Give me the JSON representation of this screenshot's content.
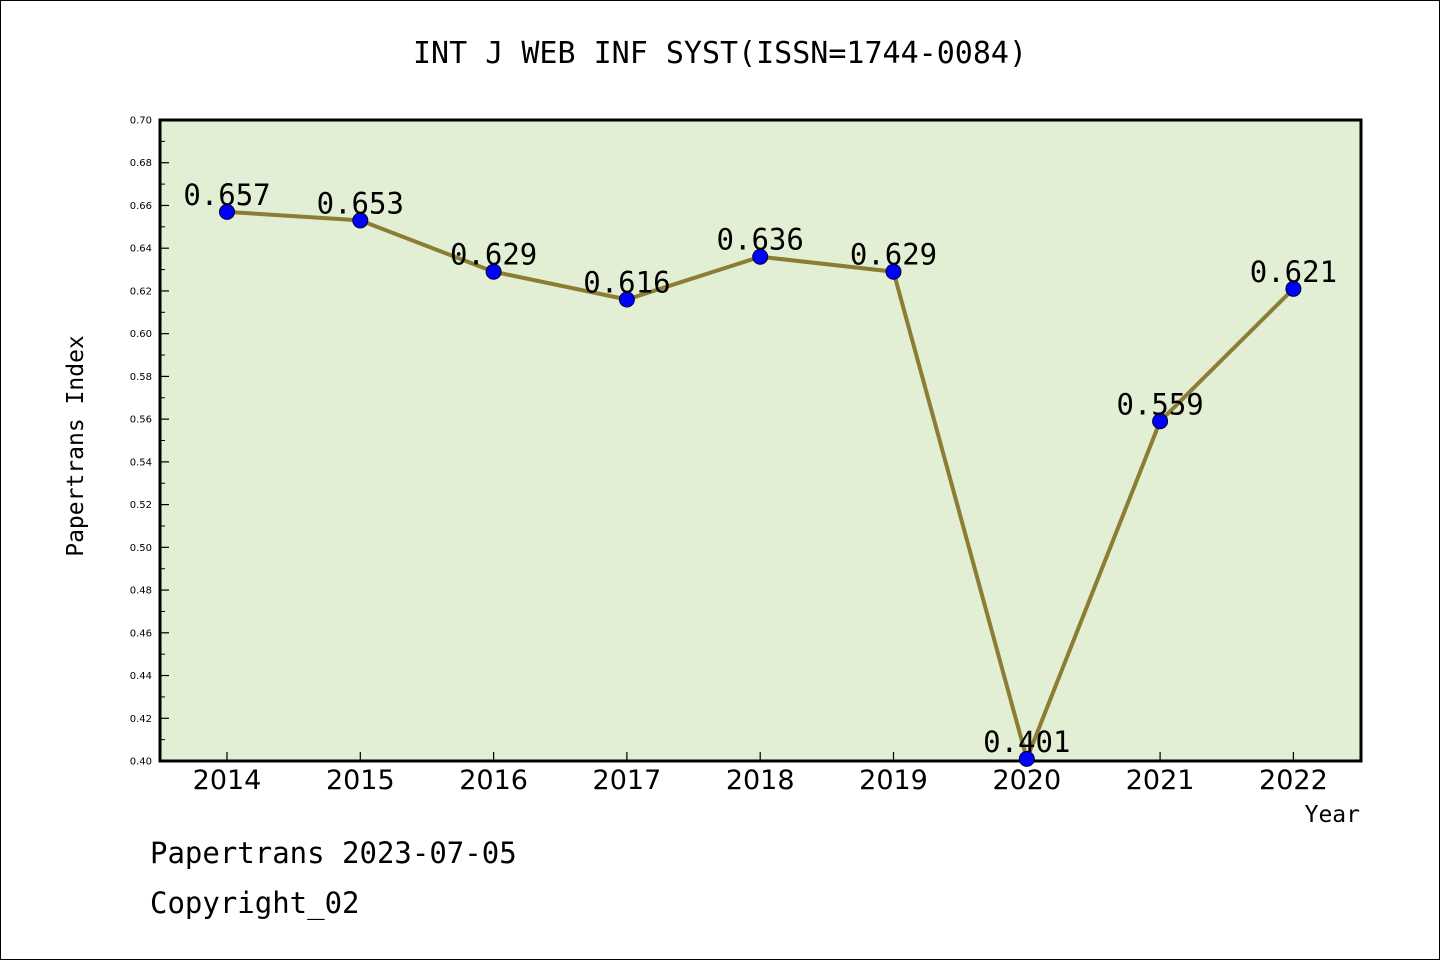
{
  "header": {
    "title": "INT J WEB INF SYST(ISSN=1744-0084)"
  },
  "footer": {
    "line1": "Papertrans 2023-07-05",
    "line2": "Copyright_02"
  },
  "colors": {
    "plot_background": "#e2efd4",
    "line": "#8b7d34",
    "marker": "#0000ff"
  },
  "chart_data": {
    "type": "line",
    "title": "INT J WEB INF SYST(ISSN=1744-0084)",
    "xlabel": "Year",
    "ylabel": "Papertrans Index",
    "categories": [
      "2014",
      "2015",
      "2016",
      "2017",
      "2018",
      "2019",
      "2020",
      "2021",
      "2022"
    ],
    "series": [
      {
        "values": [
          0.657,
          0.653,
          0.629,
          0.616,
          0.636,
          0.629,
          0.401,
          0.559,
          0.621
        ],
        "data_labels": [
          "0.657",
          "0.653",
          "0.629",
          "0.616",
          "0.636",
          "0.629",
          "0.401",
          "0.559",
          "0.621"
        ]
      }
    ],
    "ylim": [
      0.4,
      0.7
    ],
    "y_ticks": [
      "0.40",
      "0.42",
      "0.44",
      "0.46",
      "0.48",
      "0.50",
      "0.52",
      "0.54",
      "0.56",
      "0.58",
      "0.60",
      "0.62",
      "0.64",
      "0.66",
      "0.68",
      "0.70"
    ],
    "grid": false,
    "legend": "none"
  }
}
